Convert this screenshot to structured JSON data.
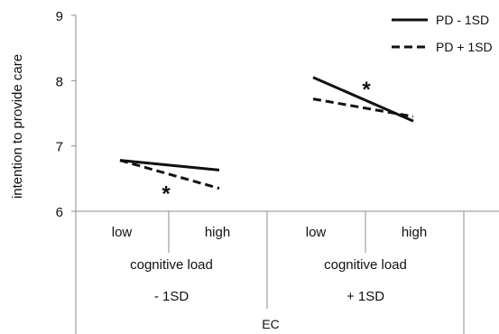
{
  "chart_data": {
    "type": "line",
    "ylabel": "intention to provide care",
    "ylim": [
      6,
      9
    ],
    "yticks": [
      "6",
      "7",
      "8",
      "9"
    ],
    "x_levels": {
      "level1": [
        "low",
        "high",
        "low",
        "high"
      ],
      "level2": [
        "cognitive load",
        "cognitive load"
      ],
      "level3": [
        "- 1SD",
        "+ 1SD"
      ],
      "level4": "EC"
    },
    "series": [
      {
        "name": "PD - 1SD",
        "style": "solid",
        "segments": [
          {
            "values": [
              6.78,
              6.63
            ]
          },
          {
            "values": [
              8.05,
              7.38
            ]
          }
        ]
      },
      {
        "name": "PD + 1SD",
        "style": "dashed",
        "segments": [
          {
            "values": [
              6.78,
              6.35
            ]
          },
          {
            "values": [
              7.72,
              7.45
            ]
          }
        ]
      }
    ],
    "annotations": [
      {
        "text": "*",
        "group": 0,
        "y": 6.35
      },
      {
        "text": "*",
        "group": 1,
        "y": 7.95
      }
    ],
    "legend_position": "top-right",
    "grid": false,
    "line_color": "#111111"
  }
}
